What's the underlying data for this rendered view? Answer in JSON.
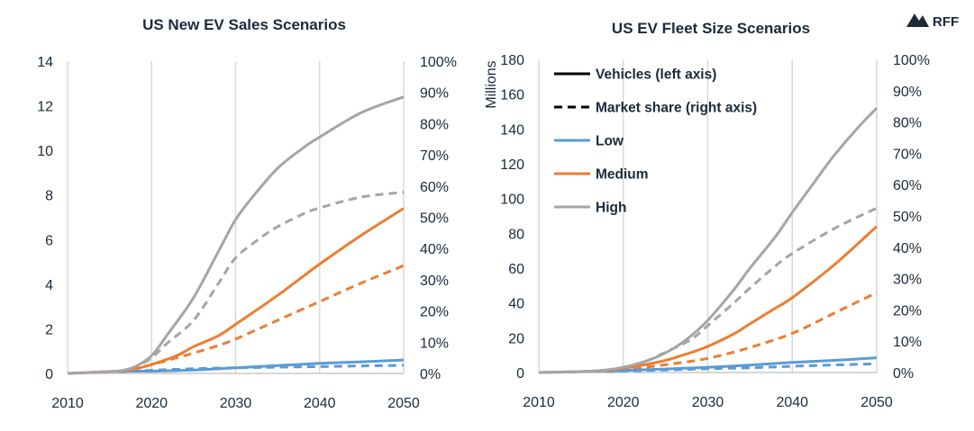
{
  "logo": {
    "text": "RFF",
    "icon": "rff-mountain-icon"
  },
  "colors": {
    "low": "#5b9bd5",
    "medium": "#ed7d31",
    "high": "#a5a5a5",
    "text": "#1b2a3a",
    "grid": "#d9d9d9"
  },
  "legend": {
    "items": [
      {
        "key": "vehicles",
        "label": "Vehicles (left axis)",
        "style": "solid",
        "color": "#000000"
      },
      {
        "key": "share",
        "label": "Market share (right axis)",
        "style": "dashed",
        "color": "#000000"
      },
      {
        "key": "low",
        "label": "Low",
        "style": "solid",
        "color": "#5b9bd5"
      },
      {
        "key": "medium",
        "label": "Medium",
        "style": "solid",
        "color": "#ed7d31"
      },
      {
        "key": "high",
        "label": "High",
        "style": "solid",
        "color": "#a5a5a5"
      }
    ]
  },
  "chart_data": [
    {
      "type": "line",
      "title": "US New EV Sales Scenarios",
      "xlabel": "",
      "ylabel": "",
      "y2label": "",
      "xlim": [
        2010,
        2050
      ],
      "xticks": [
        "2010",
        "2020",
        "2030",
        "2040",
        "2050"
      ],
      "ylim": [
        0,
        14
      ],
      "yticks": [
        "0",
        "2",
        "4",
        "6",
        "8",
        "10",
        "12",
        "14"
      ],
      "y2lim": [
        0,
        100
      ],
      "y2ticks": [
        "0%",
        "10%",
        "20%",
        "30%",
        "40%",
        "50%",
        "60%",
        "70%",
        "80%",
        "90%",
        "100%"
      ],
      "grid": "vertical",
      "series": [
        {
          "scenario": "low",
          "measure": "vehicles",
          "axis": "left",
          "x": [
            2010,
            2013,
            2016,
            2020,
            2025,
            2030,
            2035,
            2040,
            2045,
            2050
          ],
          "y": [
            0,
            0.05,
            0.1,
            0.1,
            0.15,
            0.25,
            0.35,
            0.45,
            0.52,
            0.6
          ]
        },
        {
          "scenario": "medium",
          "measure": "vehicles",
          "axis": "left",
          "x": [
            2010,
            2013,
            2016,
            2018,
            2020,
            2023,
            2025,
            2028,
            2030,
            2035,
            2040,
            2045,
            2050
          ],
          "y": [
            0,
            0.05,
            0.1,
            0.2,
            0.4,
            0.8,
            1.2,
            1.7,
            2.2,
            3.5,
            4.9,
            6.2,
            7.4
          ]
        },
        {
          "scenario": "high",
          "measure": "vehicles",
          "axis": "left",
          "x": [
            2010,
            2013,
            2016,
            2018,
            2020,
            2022,
            2025,
            2028,
            2030,
            2032,
            2035,
            2038,
            2040,
            2045,
            2050
          ],
          "y": [
            0,
            0.05,
            0.1,
            0.3,
            0.8,
            1.8,
            3.4,
            5.5,
            6.9,
            7.9,
            9.2,
            10.1,
            10.6,
            11.7,
            12.4
          ]
        },
        {
          "scenario": "low",
          "measure": "share",
          "axis": "right",
          "x": [
            2016,
            2020,
            2025,
            2030,
            2035,
            2040,
            2045,
            2050
          ],
          "y": [
            0.5,
            1,
            1.5,
            1.8,
            2,
            2.2,
            2.4,
            2.6
          ]
        },
        {
          "scenario": "medium",
          "measure": "share",
          "axis": "right",
          "x": [
            2016,
            2018,
            2020,
            2023,
            2025,
            2028,
            2030,
            2035,
            2040,
            2045,
            2050
          ],
          "y": [
            0.5,
            1.5,
            2.8,
            5,
            6.5,
            9,
            11,
            17,
            23,
            29,
            34.5
          ]
        },
        {
          "scenario": "high",
          "measure": "share",
          "axis": "right",
          "x": [
            2016,
            2018,
            2020,
            2022,
            2025,
            2028,
            2030,
            2033,
            2035,
            2038,
            2040,
            2045,
            2050
          ],
          "y": [
            0.5,
            2,
            5,
            10,
            17,
            29,
            37,
            43.5,
            47,
            51,
            53,
            56.5,
            58
          ]
        }
      ]
    },
    {
      "type": "line",
      "title": "US EV Fleet Size Scenarios",
      "xlabel": "",
      "ylabel": "Millions",
      "y2label": "",
      "xlim": [
        2010,
        2050
      ],
      "xticks": [
        "2010",
        "2020",
        "2030",
        "2040",
        "2050"
      ],
      "ylim": [
        0,
        180
      ],
      "yticks": [
        "0",
        "20",
        "40",
        "60",
        "80",
        "100",
        "120",
        "140",
        "160",
        "180"
      ],
      "y2lim": [
        0,
        100
      ],
      "y2ticks": [
        "0%",
        "10%",
        "20%",
        "30%",
        "40%",
        "50%",
        "60%",
        "70%",
        "80%",
        "90%",
        "100%"
      ],
      "grid": "vertical",
      "legend": "top-left",
      "series": [
        {
          "scenario": "low",
          "measure": "vehicles",
          "axis": "left",
          "x": [
            2010,
            2015,
            2020,
            2025,
            2030,
            2035,
            2040,
            2045,
            2050
          ],
          "y": [
            0,
            0.5,
            1.2,
            2,
            3,
            4.3,
            5.8,
            7,
            8.5
          ]
        },
        {
          "scenario": "medium",
          "measure": "vehicles",
          "axis": "left",
          "x": [
            2010,
            2015,
            2018,
            2020,
            2022,
            2025,
            2028,
            2030,
            2033,
            2035,
            2038,
            2040,
            2045,
            2050
          ],
          "y": [
            0,
            0.5,
            1.3,
            2.5,
            4,
            7,
            11.5,
            15,
            22,
            28,
            37,
            43,
            62,
            84
          ]
        },
        {
          "scenario": "high",
          "measure": "vehicles",
          "axis": "left",
          "x": [
            2010,
            2015,
            2018,
            2020,
            2022,
            2024,
            2026,
            2028,
            2030,
            2033,
            2035,
            2038,
            2040,
            2043,
            2045,
            2048,
            2050
          ],
          "y": [
            0,
            0.5,
            1.5,
            3,
            5.5,
            9,
            14,
            21,
            30,
            47,
            60,
            78,
            92,
            112,
            125,
            142,
            152
          ]
        },
        {
          "scenario": "low",
          "measure": "share",
          "axis": "right",
          "x": [
            2018,
            2020,
            2025,
            2030,
            2035,
            2040,
            2045,
            2050
          ],
          "y": [
            0.3,
            0.5,
            0.8,
            1.2,
            1.5,
            2,
            2.4,
            2.8
          ]
        },
        {
          "scenario": "medium",
          "measure": "share",
          "axis": "right",
          "x": [
            2018,
            2020,
            2025,
            2030,
            2035,
            2040,
            2045,
            2050
          ],
          "y": [
            0.3,
            0.8,
            2.5,
            4.5,
            8,
            12.5,
            19,
            25.5
          ]
        },
        {
          "scenario": "high",
          "measure": "share",
          "axis": "right",
          "x": [
            2018,
            2020,
            2023,
            2025,
            2028,
            2030,
            2033,
            2035,
            2038,
            2040,
            2045,
            2050
          ],
          "y": [
            0.3,
            1.5,
            4,
            6.5,
            10.5,
            15,
            22,
            27,
            34,
            38,
            46,
            52.5
          ]
        }
      ]
    }
  ]
}
